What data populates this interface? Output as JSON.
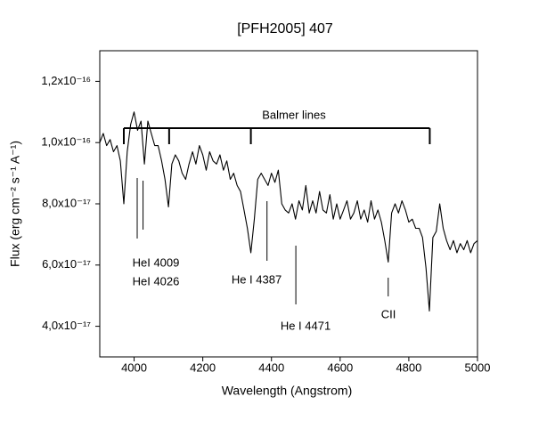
{
  "chart_data": {
    "type": "line",
    "title": "[PFH2005] 407",
    "x_label": "Wavelength (Angstrom)",
    "y_label": "Flux (erg cm⁻² s⁻¹ A⁻¹)",
    "xlim": [
      3900,
      5000
    ],
    "xticks": [
      4000,
      4200,
      4400,
      4600,
      4800,
      5000
    ],
    "ylim": [
      3e-17,
      1.3e-16
    ],
    "yticks": [
      {
        "value": 4e-17,
        "label": "4,0x10⁻¹⁷"
      },
      {
        "value": 6e-17,
        "label": "6,0x10⁻¹⁷"
      },
      {
        "value": 8e-17,
        "label": "8,0x10⁻¹⁷"
      },
      {
        "value": 1e-16,
        "label": "1,0x10⁻¹⁶"
      },
      {
        "value": 1.2e-16,
        "label": "1,2x10⁻¹⁶"
      }
    ],
    "series": [
      {
        "color": "#000000",
        "x": [
          3900,
          3910,
          3920,
          3930,
          3940,
          3950,
          3960,
          3970,
          3980,
          3990,
          4000,
          4010,
          4020,
          4030,
          4040,
          4050,
          4060,
          4070,
          4080,
          4090,
          4100,
          4110,
          4120,
          4130,
          4140,
          4150,
          4160,
          4170,
          4180,
          4190,
          4200,
          4210,
          4220,
          4230,
          4240,
          4250,
          4260,
          4270,
          4280,
          4290,
          4300,
          4310,
          4320,
          4330,
          4340,
          4350,
          4360,
          4370,
          4380,
          4390,
          4400,
          4410,
          4420,
          4430,
          4440,
          4450,
          4460,
          4470,
          4480,
          4490,
          4500,
          4510,
          4520,
          4530,
          4540,
          4550,
          4560,
          4570,
          4580,
          4590,
          4600,
          4610,
          4620,
          4630,
          4640,
          4650,
          4660,
          4670,
          4680,
          4690,
          4700,
          4710,
          4720,
          4730,
          4740,
          4750,
          4760,
          4770,
          4780,
          4790,
          4800,
          4810,
          4820,
          4830,
          4840,
          4850,
          4860,
          4870,
          4880,
          4890,
          4900,
          4910,
          4920,
          4930,
          4940,
          4950,
          4960,
          4970,
          4980,
          4990,
          5000
        ],
        "values": [
          1e-16,
          1.03e-16,
          9.9e-17,
          1.01e-16,
          9.7e-17,
          9.9e-17,
          9.4e-17,
          8e-17,
          9.7e-17,
          1.06e-16,
          1.1e-16,
          1.04e-16,
          1.07e-16,
          9.3e-17,
          1.07e-16,
          1.03e-16,
          9.9e-17,
          9.9e-17,
          9.4e-17,
          8.8e-17,
          7.9e-17,
          9.3e-17,
          9.6e-17,
          9.4e-17,
          9e-17,
          8.8e-17,
          9.3e-17,
          9.7e-17,
          9.3e-17,
          9.9e-17,
          9.6e-17,
          9.1e-17,
          9.7e-17,
          9.4e-17,
          9.3e-17,
          9.6e-17,
          9.1e-17,
          9.4e-17,
          8.8e-17,
          9e-17,
          8.6e-17,
          8.4e-17,
          7.8e-17,
          7.2e-17,
          6.4e-17,
          7.5e-17,
          8.8e-17,
          9e-17,
          8.8e-17,
          8.6e-17,
          9e-17,
          8.7e-17,
          9.1e-17,
          8e-17,
          7.8e-17,
          7.7e-17,
          8e-17,
          7.5e-17,
          8.1e-17,
          7.8e-17,
          8.6e-17,
          7.7e-17,
          8.1e-17,
          7.7e-17,
          8.4e-17,
          7.8e-17,
          7.7e-17,
          8.3e-17,
          7.5e-17,
          8e-17,
          7.5e-17,
          7.8e-17,
          8.1e-17,
          7.5e-17,
          7.7e-17,
          8.1e-17,
          7.5e-17,
          7.8e-17,
          7.4e-17,
          8.1e-17,
          7.5e-17,
          7.8e-17,
          7.4e-17,
          6.8e-17,
          6.1e-17,
          7.7e-17,
          8e-17,
          7.7e-17,
          8.1e-17,
          7.8e-17,
          7.4e-17,
          7.5e-17,
          7.2e-17,
          7.2e-17,
          6.9e-17,
          5.9e-17,
          4.5e-17,
          6.9e-17,
          7.1e-17,
          8e-17,
          7.2e-17,
          6.8e-17,
          6.5e-17,
          6.8e-17,
          6.4e-17,
          6.7e-17,
          6.5e-17,
          6.8e-17,
          6.4e-17,
          6.7e-17,
          6.8e-17
        ]
      }
    ],
    "balmer_label": "Balmer lines",
    "balmer_lines": [
      3970,
      4102,
      4340,
      4861
    ],
    "line_markers": [
      {
        "text": "HeI 4009",
        "x": 4009
      },
      {
        "text": "HeI 4026",
        "x": 4026
      },
      {
        "text": "He I 4387",
        "x": 4387
      },
      {
        "text": "He I 4471",
        "x": 4471
      },
      {
        "text": "CII",
        "x": 4740
      }
    ]
  }
}
